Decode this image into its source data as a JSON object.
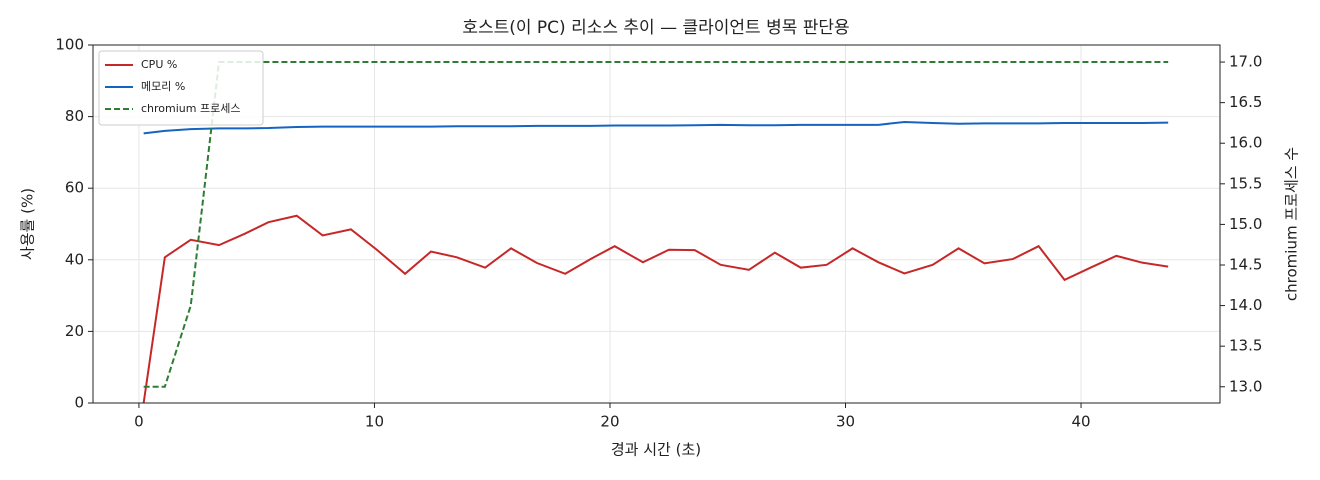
{
  "chart_data": {
    "type": "line",
    "title": "호스트(이 PC) 리소스 추이 — 클라이언트 병목 판단용",
    "xlabel": "경과 시간 (초)",
    "ylabel": "사용률 (%)",
    "y2label": "chromium 프로세스 수",
    "x": [
      0.2,
      1.1,
      2.2,
      3.4,
      4.5,
      5.5,
      6.7,
      7.8,
      9.0,
      10.1,
      11.3,
      12.4,
      13.5,
      14.7,
      15.8,
      16.9,
      18.1,
      19.2,
      20.2,
      21.4,
      22.5,
      23.6,
      24.7,
      25.9,
      27.0,
      28.1,
      29.2,
      30.3,
      31.4,
      32.5,
      33.7,
      34.8,
      35.9,
      37.1,
      38.2,
      39.3,
      40.4,
      41.5,
      42.6,
      43.7
    ],
    "series": [
      {
        "name": "CPU %",
        "color": "#c62828",
        "linestyle": "solid",
        "values": [
          0,
          40.7,
          45.6,
          44.1,
          47.3,
          50.5,
          52.3,
          46.8,
          48.5,
          42.8,
          36.1,
          42.3,
          40.7,
          37.8,
          43.2,
          39.1,
          36.1,
          40.3,
          43.8,
          39.3,
          42.8,
          42.7,
          38.6,
          37.2,
          42.0,
          37.8,
          38.6,
          43.2,
          39.3,
          36.2,
          38.6,
          43.2,
          39.0,
          40.2,
          43.8,
          34.4,
          37.8,
          41.1,
          39.2,
          38.1
        ]
      },
      {
        "name": "메모리 %",
        "color": "#1565c0",
        "linestyle": "solid",
        "values": [
          75.3,
          76.0,
          76.5,
          76.7,
          76.7,
          76.8,
          77.1,
          77.2,
          77.2,
          77.2,
          77.2,
          77.2,
          77.3,
          77.3,
          77.3,
          77.4,
          77.4,
          77.4,
          77.5,
          77.5,
          77.5,
          77.6,
          77.7,
          77.6,
          77.6,
          77.7,
          77.7,
          77.7,
          77.7,
          78.5,
          78.2,
          78.0,
          78.1,
          78.1,
          78.1,
          78.2,
          78.2,
          78.2,
          78.2,
          78.3
        ]
      },
      {
        "name": "chromium 프로세스",
        "color": "#2e7d32",
        "linestyle": "dashed",
        "axis": "y2",
        "values": [
          13,
          13,
          14,
          17,
          17,
          17,
          17,
          17,
          17,
          17,
          17,
          17,
          17,
          17,
          17,
          17,
          17,
          17,
          17,
          17,
          17,
          17,
          17,
          17,
          17,
          17,
          17,
          17,
          17,
          17,
          17,
          17,
          17,
          17,
          17,
          17,
          17,
          17,
          17,
          17
        ]
      }
    ],
    "xlim": [
      -1.95,
      45.9
    ],
    "xticks": [
      0,
      10,
      20,
      30,
      40
    ],
    "ylim": [
      0,
      100
    ],
    "yticks": [
      0,
      20,
      40,
      60,
      80,
      100
    ],
    "y2lim": [
      12.8,
      17.21
    ],
    "y2ticks": [
      {
        "value": 13,
        "label": "13.0"
      },
      13.5,
      {
        "value": 14,
        "label": "14.0"
      },
      14.5,
      {
        "value": 15,
        "label": "15.0"
      },
      15.5,
      {
        "value": 16,
        "label": "16.0"
      },
      16.5,
      {
        "value": 17,
        "label": "17.0"
      }
    ],
    "grid": true,
    "legend": "upper left"
  }
}
